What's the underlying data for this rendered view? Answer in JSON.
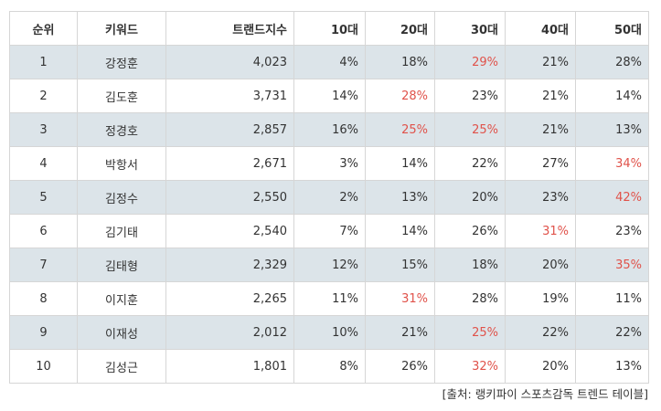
{
  "headers": [
    "순위",
    "키워드",
    "트랜드지수",
    "10대",
    "20대",
    "30대",
    "40대",
    "50대"
  ],
  "rows": [
    {
      "rank": "1",
      "keyword": "강정훈",
      "index": "4,023",
      "ages": [
        "4%",
        "18%",
        "29%",
        "21%",
        "28%"
      ],
      "highlight": 2
    },
    {
      "rank": "2",
      "keyword": "김도훈",
      "index": "3,731",
      "ages": [
        "14%",
        "28%",
        "23%",
        "21%",
        "14%"
      ],
      "highlight": 1
    },
    {
      "rank": "3",
      "keyword": "정경호",
      "index": "2,857",
      "ages": [
        "16%",
        "25%",
        "25%",
        "21%",
        "13%"
      ],
      "highlight": [
        1,
        2
      ]
    },
    {
      "rank": "4",
      "keyword": "박항서",
      "index": "2,671",
      "ages": [
        "3%",
        "14%",
        "22%",
        "27%",
        "34%"
      ],
      "highlight": 4
    },
    {
      "rank": "5",
      "keyword": "김정수",
      "index": "2,550",
      "ages": [
        "2%",
        "13%",
        "20%",
        "23%",
        "42%"
      ],
      "highlight": 4
    },
    {
      "rank": "6",
      "keyword": "김기태",
      "index": "2,540",
      "ages": [
        "7%",
        "14%",
        "26%",
        "31%",
        "23%"
      ],
      "highlight": 3
    },
    {
      "rank": "7",
      "keyword": "김태형",
      "index": "2,329",
      "ages": [
        "12%",
        "15%",
        "18%",
        "20%",
        "35%"
      ],
      "highlight": 4
    },
    {
      "rank": "8",
      "keyword": "이지훈",
      "index": "2,265",
      "ages": [
        "11%",
        "31%",
        "28%",
        "19%",
        "11%"
      ],
      "highlight": 1
    },
    {
      "rank": "9",
      "keyword": "이재성",
      "index": "2,012",
      "ages": [
        "10%",
        "21%",
        "25%",
        "22%",
        "22%"
      ],
      "highlight": 2
    },
    {
      "rank": "10",
      "keyword": "김성근",
      "index": "1,801",
      "ages": [
        "8%",
        "26%",
        "32%",
        "20%",
        "13%"
      ],
      "highlight": 2
    }
  ],
  "source": "[출처: 랭키파이 스포츠감독 트렌드 테이블]",
  "colors": {
    "highlight": "#e0524a",
    "stripe": "#dce4e9",
    "border": "#d6d6d6"
  }
}
